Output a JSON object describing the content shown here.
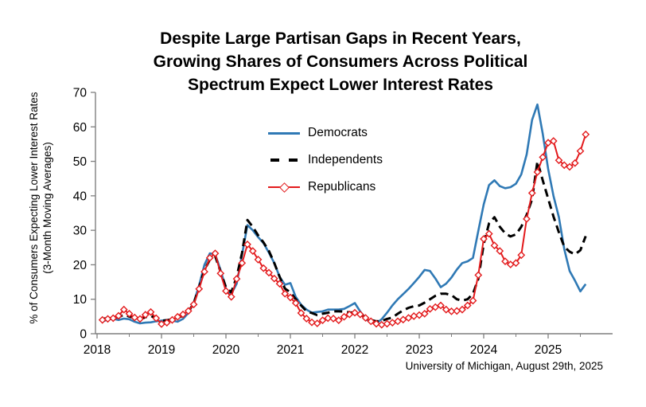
{
  "title": {
    "lines": [
      "Despite Large Partisan Gaps in Recent Years,",
      "Growing Shares of Consumers Across Political",
      "Spectrum Expect Lower Interest Rates"
    ]
  },
  "footer": {
    "text": "University of Michigan, August 29th, 2025"
  },
  "chart_data": {
    "type": "line",
    "title": "Despite Large Partisan Gaps in Recent Years, Growing Shares of Consumers Across Political Spectrum Expect Lower Interest Rates",
    "ylabel_lines": [
      "% of Consumers Expecting Lower Interest Rates",
      "(3-Month Moving Averages)"
    ],
    "xlabel": "",
    "grid": false,
    "legend_position": "upper-center",
    "axis_color": "#7f7f7f",
    "y_axis": {
      "min": 0,
      "max": 70,
      "ticks": [
        0,
        10,
        20,
        30,
        40,
        50,
        60,
        70
      ]
    },
    "x_axis": {
      "start_year": 2018,
      "end_year": 2026,
      "tick_labels": [
        "2018",
        "2019",
        "2020",
        "2021",
        "2022",
        "2023",
        "2024",
        "2025"
      ],
      "minor_tick_interval": 0.5
    },
    "series_start": {
      "year": 2018,
      "month": 2
    },
    "points_per_year": 12,
    "series": [
      {
        "name": "Democrats",
        "color": "#2f79b5",
        "style": "solid",
        "marker": "none",
        "values": [
          3.5,
          4.2,
          4.3,
          4.0,
          4.4,
          4.2,
          3.5,
          3.0,
          3.2,
          3.3,
          3.6,
          3.8,
          4.0,
          3.8,
          3.5,
          4.3,
          6.0,
          9.0,
          14.0,
          20.0,
          23.3,
          23.0,
          18.5,
          13.0,
          11.5,
          14.5,
          23.0,
          31.5,
          30.0,
          28.0,
          26.3,
          23.5,
          20.5,
          16.5,
          14.2,
          14.7,
          10.7,
          8.4,
          7.0,
          6.1,
          6.3,
          6.5,
          7.0,
          7.0,
          7.0,
          7.2,
          8.0,
          8.9,
          6.5,
          4.2,
          3.4,
          3.0,
          4.2,
          6.1,
          8.2,
          10.0,
          11.5,
          13.0,
          14.7,
          16.5,
          18.5,
          18.2,
          16.0,
          13.5,
          14.5,
          16.3,
          18.6,
          20.5,
          21.0,
          22.0,
          29.8,
          37.5,
          43.1,
          44.5,
          42.8,
          42.2,
          42.5,
          43.5,
          46.2,
          52.0,
          62.0,
          66.5,
          58.0,
          47.8,
          40.0,
          33.8,
          24.5,
          18.2,
          15.4,
          12.3,
          14.4
        ]
      },
      {
        "name": "Independents",
        "color": "#000000",
        "style": "dashed",
        "marker": "none",
        "values": [
          4.3,
          4.5,
          4.6,
          4.8,
          5.5,
          5.0,
          4.5,
          4.2,
          4.8,
          5.2,
          4.4,
          3.8,
          3.9,
          4.2,
          4.6,
          5.2,
          6.4,
          8.8,
          13.5,
          18.5,
          21.5,
          22.5,
          18.0,
          13.5,
          12.0,
          16.5,
          23.5,
          33.0,
          31.0,
          28.5,
          26.5,
          24.0,
          20.5,
          16.5,
          13.1,
          12.0,
          10.0,
          8.2,
          6.5,
          6.0,
          5.4,
          5.8,
          6.1,
          6.5,
          6.5,
          6.4,
          6.2,
          6.1,
          5.4,
          4.9,
          4.0,
          3.6,
          3.7,
          4.3,
          4.7,
          5.8,
          6.8,
          7.5,
          8.0,
          8.2,
          9.0,
          10.0,
          11.0,
          11.6,
          11.6,
          11.2,
          10.0,
          9.6,
          10.0,
          11.6,
          15.9,
          26.0,
          32.0,
          33.8,
          31.0,
          29.1,
          28.2,
          28.8,
          31.0,
          34.5,
          39.0,
          50.0,
          44.5,
          39.2,
          34.0,
          29.4,
          25.2,
          23.8,
          23.0,
          24.2,
          28.3
        ]
      },
      {
        "name": "Republicans",
        "color": "#e31a1c",
        "style": "solid",
        "marker": "diamond",
        "values": [
          4.0,
          4.3,
          4.5,
          5.2,
          7.0,
          5.8,
          4.7,
          4.3,
          5.5,
          6.3,
          4.5,
          2.8,
          3.2,
          4.0,
          4.9,
          5.6,
          6.6,
          8.5,
          13.0,
          18.0,
          22.0,
          23.3,
          17.5,
          12.4,
          10.7,
          15.9,
          20.5,
          25.9,
          24.0,
          21.5,
          19.0,
          17.7,
          16.0,
          14.5,
          11.6,
          10.5,
          8.9,
          6.0,
          4.4,
          3.3,
          3.0,
          3.9,
          4.5,
          4.4,
          3.9,
          4.9,
          5.6,
          6.1,
          5.6,
          4.6,
          3.6,
          2.9,
          2.6,
          2.9,
          3.2,
          3.6,
          4.1,
          4.6,
          5.1,
          5.4,
          5.8,
          7.2,
          7.7,
          8.2,
          7.0,
          6.5,
          6.6,
          7.0,
          8.2,
          9.6,
          17.0,
          27.5,
          29.0,
          25.6,
          24.0,
          21.0,
          20.1,
          20.5,
          22.8,
          33.3,
          40.8,
          46.9,
          51.2,
          55.4,
          55.9,
          50.3,
          48.9,
          48.4,
          49.5,
          53.0,
          57.8
        ]
      }
    ]
  }
}
